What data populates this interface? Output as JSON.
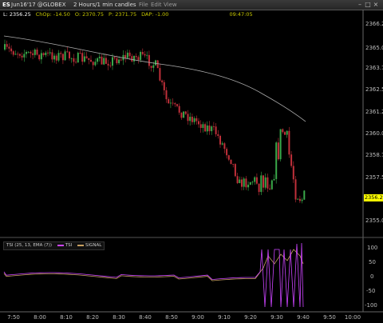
{
  "titlebar": {
    "symbol": "ES",
    "contract": "Jun16'17 @GLOBEX",
    "timeframe": "2 Hours/1 min candles",
    "menu": [
      "File",
      "Edit",
      "View"
    ]
  },
  "quote": {
    "last": "L: 2356.25",
    "change": "ChOp: -14.50",
    "open": "O: 2370.75",
    "price2": "P: 2371.75",
    "dap": "DAP: -1.00",
    "clock": "09:47:05"
  },
  "price_axis": {
    "ticks": [
      "2366.2",
      "2365.0",
      "2363.7",
      "2362.5",
      "2361.2",
      "2360.0",
      "2358.7",
      "2357.5",
      "2356.2",
      "2355.0"
    ],
    "last_price_label": "2356.2"
  },
  "indicator": {
    "name": "TSI",
    "params": "(25, 13, EMA (7))",
    "series_labels": [
      "TSI",
      "SIGNAL"
    ],
    "ticks": [
      "100",
      "50",
      "0",
      "-50",
      "-100"
    ],
    "colors": {
      "tsi": "#cc44ff",
      "signal": "#c8a060"
    }
  },
  "time_axis": [
    "7:50",
    "8:00",
    "8:10",
    "8:20",
    "8:30",
    "8:40",
    "8:50",
    "9:00",
    "9:10",
    "9:20",
    "9:30",
    "9:40",
    "9:50",
    "10:00"
  ],
  "colors": {
    "up": "#3aa84a",
    "down": "#c0303a",
    "ma": "#aaaaaa",
    "background": "#000000"
  }
}
